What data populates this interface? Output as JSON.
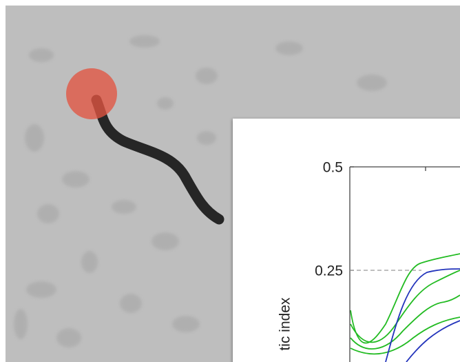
{
  "inset": {
    "yticks": [
      0.5,
      0.25
    ],
    "ylabel": "tic index"
  }
}
